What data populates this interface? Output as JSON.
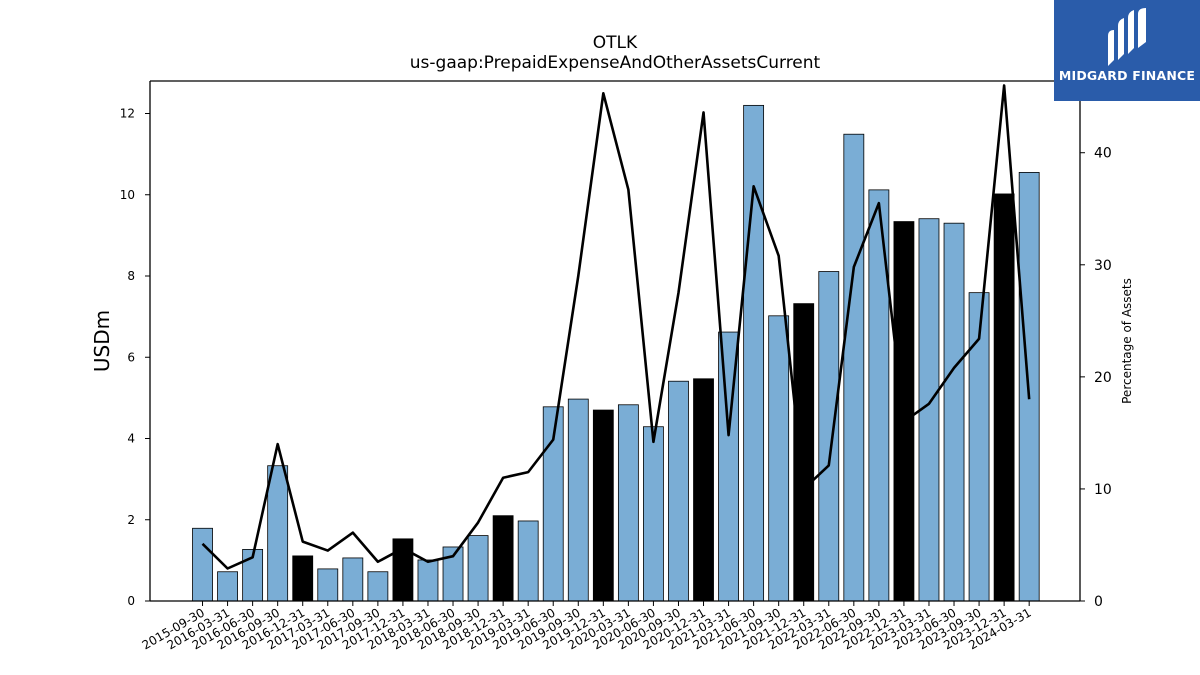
{
  "chart_data": {
    "type": "bar",
    "title": "OTLK",
    "subtitle": "us-gaap:PrepaidExpenseAndOtherAssetsCurrent",
    "ylabel": "USDm",
    "y2label": "Percentage of Assets",
    "ylim": [
      0,
      12.8
    ],
    "y2lim": [
      0,
      46.4
    ],
    "yticks": [
      0,
      2,
      4,
      6,
      8,
      10,
      12
    ],
    "y2ticks": [
      0,
      10,
      20,
      30,
      40
    ],
    "categories": [
      "2015-09-30",
      "2016-03-31",
      "2016-06-30",
      "2016-09-30",
      "2016-12-31",
      "2017-03-31",
      "2017-06-30",
      "2017-09-30",
      "2017-12-31",
      "2018-03-31",
      "2018-06-30",
      "2018-09-30",
      "2018-12-31",
      "2019-03-31",
      "2019-06-30",
      "2019-09-30",
      "2019-12-31",
      "2020-03-31",
      "2020-06-30",
      "2020-09-30",
      "2020-12-31",
      "2021-03-31",
      "2021-06-30",
      "2021-09-30",
      "2021-12-31",
      "2022-03-31",
      "2022-06-30",
      "2022-09-30",
      "2022-12-31",
      "2023-03-31",
      "2023-06-30",
      "2023-09-30",
      "2023-12-31",
      "2024-03-31"
    ],
    "series": [
      {
        "type": "bar",
        "values": [
          1.79,
          0.72,
          1.27,
          3.33,
          1.11,
          0.79,
          1.06,
          0.72,
          1.53,
          1.01,
          1.33,
          1.61,
          2.1,
          1.97,
          4.78,
          4.97,
          4.7,
          4.83,
          4.29,
          5.41,
          5.47,
          6.62,
          12.2,
          7.02,
          7.32,
          8.11,
          11.49,
          10.12,
          9.34,
          9.41,
          9.3,
          7.59,
          10.02,
          10.55
        ],
        "highlight": [
          false,
          false,
          false,
          false,
          true,
          false,
          false,
          false,
          true,
          false,
          false,
          false,
          true,
          false,
          false,
          false,
          true,
          false,
          false,
          false,
          true,
          false,
          false,
          false,
          true,
          false,
          false,
          false,
          true,
          false,
          false,
          false,
          true,
          false
        ]
      },
      {
        "type": "line",
        "axis": "right",
        "values": [
          5.1,
          2.9,
          3.9,
          14.0,
          5.3,
          4.5,
          6.1,
          3.5,
          4.7,
          3.5,
          4.0,
          7.0,
          11.0,
          11.5,
          14.4,
          29.0,
          45.3,
          36.7,
          14.2,
          27.5,
          43.6,
          14.8,
          37.0,
          30.8,
          10.0,
          12.1,
          29.8,
          35.5,
          16.0,
          17.6,
          20.8,
          23.4,
          46.0,
          18.0
        ]
      }
    ],
    "colors": {
      "bar": "#7aadd5",
      "bar_highlight": "#000000",
      "line": "#000000",
      "edge": "#000000"
    },
    "grid": false
  },
  "logo": {
    "text": "MIDGARD FINANCE",
    "icon": "midgard-logo-icon",
    "background": "#2a5caa"
  }
}
